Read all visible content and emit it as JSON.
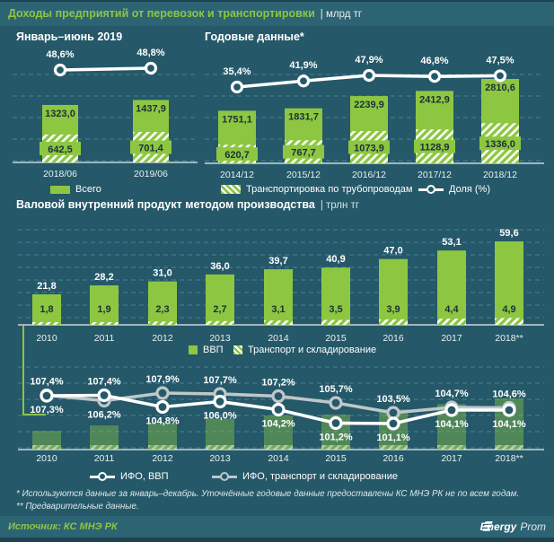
{
  "header": {
    "title": "Доходы предприятий от перевозок и транспортировки",
    "unit": "| млрд тг"
  },
  "section2_unit": "| трлн тг",
  "chart_data": [
    {
      "id": "half_year_income",
      "type": "bar",
      "title": "Январь–июнь  2019",
      "categories": [
        "2018/06",
        "2019/06"
      ],
      "series": [
        {
          "name": "Всего",
          "values": [
            1323.0,
            1437.9
          ]
        },
        {
          "name": "Транспортировка по трубопроводам",
          "values": [
            642.5,
            701.4
          ]
        },
        {
          "name": "Доля (%)",
          "values": [
            48.6,
            48.8
          ]
        }
      ],
      "ylabel": "млрд тг",
      "grid": "dashed",
      "legend_position": "bottom-shared"
    },
    {
      "id": "annual_income",
      "type": "bar",
      "title": "Годовые данные*",
      "categories": [
        "2014/12",
        "2015/12",
        "2016/12",
        "2017/12",
        "2018/12"
      ],
      "series": [
        {
          "name": "Всего",
          "values": [
            1751.1,
            1831.7,
            2239.9,
            2412.9,
            2810.6
          ]
        },
        {
          "name": "Транспортировка по трубопроводам",
          "values": [
            620.7,
            767.7,
            1073.9,
            1128.9,
            1336.0
          ]
        },
        {
          "name": "Доля (%)",
          "values": [
            35.4,
            41.9,
            47.9,
            46.8,
            47.5
          ]
        }
      ],
      "ylabel": "млрд тг",
      "grid": "dashed",
      "legend_position": "bottom-shared"
    },
    {
      "id": "gdp_production",
      "type": "bar",
      "title": "Валовой  внутренний  продукт  методом  производства",
      "categories": [
        "2010",
        "2011",
        "2012",
        "2013",
        "2014",
        "2015",
        "2016",
        "2017",
        "2018**"
      ],
      "series": [
        {
          "name": "ВВП",
          "values": [
            21.8,
            28.2,
            31.0,
            36.0,
            39.7,
            40.9,
            47.0,
            53.1,
            59.6
          ]
        },
        {
          "name": "Транспорт и складирование",
          "values": [
            1.8,
            1.9,
            2.3,
            2.7,
            3.1,
            3.5,
            3.9,
            4.4,
            4.9
          ]
        }
      ],
      "ylabel": "трлн тг",
      "grid": "dashed",
      "legend_position": "bottom"
    },
    {
      "id": "ifo_indices",
      "type": "line",
      "title": "",
      "categories": [
        "2010",
        "2011",
        "2012",
        "2013",
        "2014",
        "2015",
        "2016",
        "2017",
        "2018**"
      ],
      "series": [
        {
          "name": "ИФО, ВВП",
          "values": [
            107.3,
            107.4,
            104.8,
            106.0,
            104.2,
            101.2,
            101.1,
            104.1,
            104.1
          ]
        },
        {
          "name": "ИФО, транспорт и складирование",
          "values": [
            107.4,
            106.2,
            107.9,
            107.7,
            107.2,
            105.7,
            103.5,
            104.7,
            104.6
          ]
        }
      ],
      "unit": "%",
      "grid": "dashed",
      "legend_position": "bottom"
    }
  ],
  "footnotes": [
    "* Используются данные за январь–декабрь. Уточнённые годовые данные предоставлены КС МНЭ РК не по всем годам.",
    "** Предварительные данные."
  ],
  "source": {
    "label": "Источник: КС МНЭ РК"
  },
  "logo": {
    "part1": "Energy",
    "part2": "Prom"
  },
  "colors": {
    "background": "#255868",
    "panel": "#2d6474",
    "green": "#8dc742",
    "title_green": "#8dc63f",
    "gray_line": "#bfc7ca",
    "grid": "#58a0bd"
  }
}
